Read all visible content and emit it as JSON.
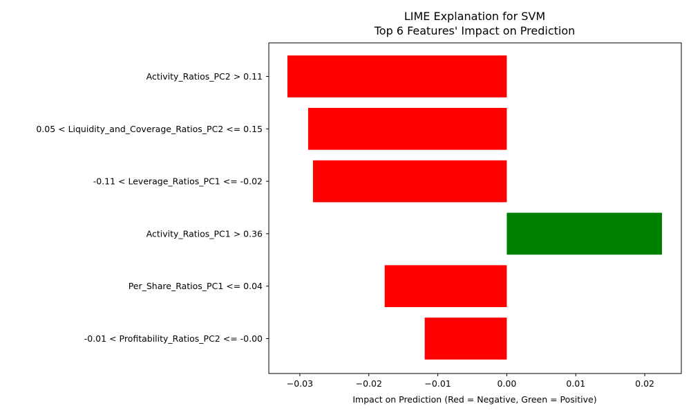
{
  "chart_data": {
    "type": "bar",
    "orientation": "horizontal",
    "title": "LIME Explanation for SVM",
    "subtitle": "Top 6 Features' Impact on Prediction",
    "xlabel": "Impact on Prediction (Red = Negative, Green = Positive)",
    "ylabel": "",
    "xlim": [
      -0.0345,
      0.0253
    ],
    "x_ticks": [
      -0.03,
      -0.02,
      -0.01,
      0.0,
      0.01,
      0.02
    ],
    "x_tick_labels": [
      "−0.03",
      "−0.02",
      "−0.01",
      "0.00",
      "0.01",
      "0.02"
    ],
    "categories": [
      "Activity_Ratios_PC2 > 0.11",
      "0.05 < Liquidity_and_Coverage_Ratios_PC2 <= 0.15",
      "-0.11 < Leverage_Ratios_PC1 <= -0.02",
      "Activity_Ratios_PC1 > 0.36",
      "Per_Share_Ratios_PC1 <= 0.04",
      "-0.01 < Profitability_Ratios_PC2 <= -0.00"
    ],
    "values": [
      -0.0318,
      -0.0288,
      -0.0281,
      0.0225,
      -0.0177,
      -0.0119
    ],
    "colors": {
      "negative": "#ff0000",
      "positive": "#008000"
    },
    "grid": false,
    "legend": "none"
  }
}
